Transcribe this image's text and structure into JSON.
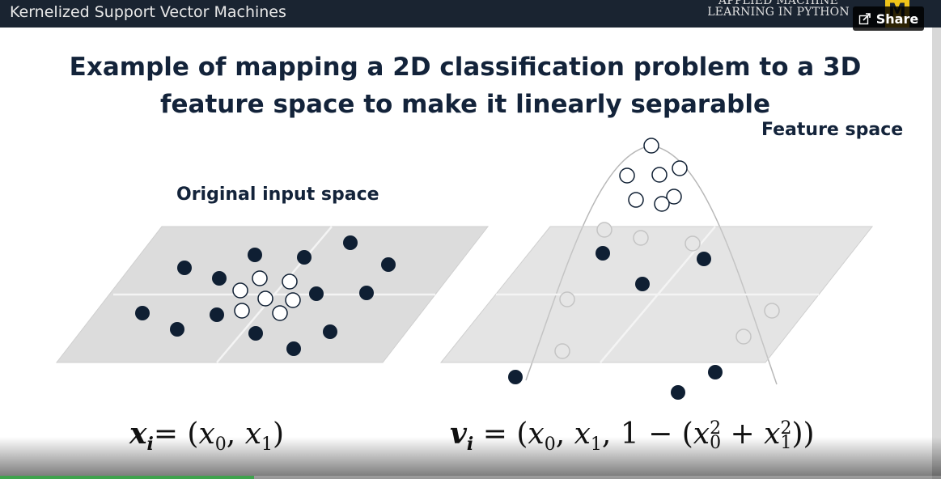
{
  "video": {
    "title": "Kernelized Support Vector Machines",
    "progress_fraction": 0.27
  },
  "brand": {
    "line1": "APPLIED MACHINE",
    "line2": "LEARNING IN PYTHON",
    "logo_letter": "M"
  },
  "share": {
    "label": "Share",
    "icon": "share-icon"
  },
  "slide": {
    "title_line1": "Example of mapping a 2D classification problem to a 3D",
    "title_line2": "feature space to make it linearly separable",
    "input_label": "Original input space",
    "feature_label": "Feature space",
    "eq_left": {
      "var": "x",
      "idx": "i",
      "rhs_open": "= (",
      "x0": "x",
      "s0": "0",
      "comma": ", ",
      "x1": "x",
      "s1": "1",
      "close": ")"
    },
    "eq_right": {
      "var": "v",
      "idx": "i",
      "rhs_open": " = (",
      "x0": "x",
      "s0": "0",
      "comma1": ", ",
      "x1": "x",
      "s1": "1",
      "comma2": ", 1 − (",
      "a": "x",
      "a_sub": "0",
      "a_sup": "2",
      "plus": " + ",
      "b": "x",
      "b_sub": "1",
      "b_sup": "2",
      "close": "))"
    }
  },
  "colors": {
    "navy": "#13233a",
    "dark_point": "#0f1f33",
    "plane": "#dcdcdc",
    "topbar": "#1a2431",
    "progress": "#3fa34d"
  }
}
